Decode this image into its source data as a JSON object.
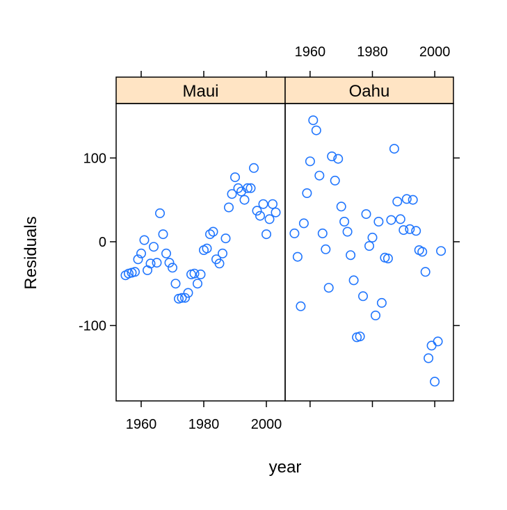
{
  "chart_data": {
    "type": "scatter",
    "xlabel": "year",
    "ylabel": "Residuals",
    "xlim": [
      1952,
      2006
    ],
    "ylim": [
      -190,
      165
    ],
    "x_ticks": [
      1960,
      1980,
      2000
    ],
    "x_tick_labels": [
      "1960",
      "1980",
      "2000"
    ],
    "y_ticks": [
      -100,
      0,
      100
    ],
    "y_tick_labels": [
      "-100",
      "0",
      "100"
    ],
    "grid": false,
    "colors": {
      "points": "#1f75fe",
      "strip": "#ffe4c4",
      "frame": "#000000"
    },
    "panels": [
      {
        "name": "Maui",
        "points": [
          {
            "x": 1955,
            "y": -40
          },
          {
            "x": 1956,
            "y": -38
          },
          {
            "x": 1957,
            "y": -37
          },
          {
            "x": 1958,
            "y": -36
          },
          {
            "x": 1959,
            "y": -21
          },
          {
            "x": 1960,
            "y": -14
          },
          {
            "x": 1961,
            "y": 2
          },
          {
            "x": 1962,
            "y": -34
          },
          {
            "x": 1963,
            "y": -26
          },
          {
            "x": 1964,
            "y": -6
          },
          {
            "x": 1965,
            "y": -25
          },
          {
            "x": 1966,
            "y": 34
          },
          {
            "x": 1967,
            "y": 9
          },
          {
            "x": 1968,
            "y": -14
          },
          {
            "x": 1969,
            "y": -25
          },
          {
            "x": 1970,
            "y": -31
          },
          {
            "x": 1971,
            "y": -50
          },
          {
            "x": 1972,
            "y": -68
          },
          {
            "x": 1973,
            "y": -67
          },
          {
            "x": 1974,
            "y": -67
          },
          {
            "x": 1975,
            "y": -61
          },
          {
            "x": 1976,
            "y": -39
          },
          {
            "x": 1977,
            "y": -38
          },
          {
            "x": 1978,
            "y": -50
          },
          {
            "x": 1979,
            "y": -39
          },
          {
            "x": 1980,
            "y": -10
          },
          {
            "x": 1981,
            "y": -8
          },
          {
            "x": 1982,
            "y": 9
          },
          {
            "x": 1983,
            "y": 12
          },
          {
            "x": 1984,
            "y": -21
          },
          {
            "x": 1985,
            "y": -26
          },
          {
            "x": 1986,
            "y": -14
          },
          {
            "x": 1987,
            "y": 4
          },
          {
            "x": 1988,
            "y": 41
          },
          {
            "x": 1989,
            "y": 57
          },
          {
            "x": 1990,
            "y": 77
          },
          {
            "x": 1991,
            "y": 64
          },
          {
            "x": 1992,
            "y": 60
          },
          {
            "x": 1993,
            "y": 50
          },
          {
            "x": 1994,
            "y": 64
          },
          {
            "x": 1995,
            "y": 64
          },
          {
            "x": 1996,
            "y": 88
          },
          {
            "x": 1997,
            "y": 37
          },
          {
            "x": 1998,
            "y": 31
          },
          {
            "x": 1999,
            "y": 45
          },
          {
            "x": 2000,
            "y": 9
          },
          {
            "x": 2001,
            "y": 27
          },
          {
            "x": 2002,
            "y": 45
          },
          {
            "x": 2003,
            "y": 35
          }
        ]
      },
      {
        "name": "Oahu",
        "points": [
          {
            "x": 1955,
            "y": 10
          },
          {
            "x": 1956,
            "y": -18
          },
          {
            "x": 1957,
            "y": -77
          },
          {
            "x": 1958,
            "y": 22
          },
          {
            "x": 1959,
            "y": 58
          },
          {
            "x": 1960,
            "y": 96
          },
          {
            "x": 1961,
            "y": 145
          },
          {
            "x": 1962,
            "y": 133
          },
          {
            "x": 1963,
            "y": 79
          },
          {
            "x": 1964,
            "y": 10
          },
          {
            "x": 1965,
            "y": -9
          },
          {
            "x": 1966,
            "y": -55
          },
          {
            "x": 1967,
            "y": 102
          },
          {
            "x": 1968,
            "y": 73
          },
          {
            "x": 1969,
            "y": 99
          },
          {
            "x": 1970,
            "y": 42
          },
          {
            "x": 1971,
            "y": 24
          },
          {
            "x": 1972,
            "y": 12
          },
          {
            "x": 1973,
            "y": -16
          },
          {
            "x": 1974,
            "y": -46
          },
          {
            "x": 1975,
            "y": -114
          },
          {
            "x": 1976,
            "y": -113
          },
          {
            "x": 1977,
            "y": -65
          },
          {
            "x": 1978,
            "y": 33
          },
          {
            "x": 1979,
            "y": -5
          },
          {
            "x": 1980,
            "y": 5
          },
          {
            "x": 1981,
            "y": -88
          },
          {
            "x": 1982,
            "y": 24
          },
          {
            "x": 1983,
            "y": -73
          },
          {
            "x": 1984,
            "y": -19
          },
          {
            "x": 1985,
            "y": -20
          },
          {
            "x": 1986,
            "y": 26
          },
          {
            "x": 1987,
            "y": 111
          },
          {
            "x": 1988,
            "y": 48
          },
          {
            "x": 1989,
            "y": 27
          },
          {
            "x": 1990,
            "y": 14
          },
          {
            "x": 1991,
            "y": 51
          },
          {
            "x": 1992,
            "y": 15
          },
          {
            "x": 1993,
            "y": 50
          },
          {
            "x": 1994,
            "y": 13
          },
          {
            "x": 1995,
            "y": -10
          },
          {
            "x": 1996,
            "y": -12
          },
          {
            "x": 1997,
            "y": -36
          },
          {
            "x": 1998,
            "y": -139
          },
          {
            "x": 1999,
            "y": -124
          },
          {
            "x": 2000,
            "y": -167
          },
          {
            "x": 2001,
            "y": -119
          },
          {
            "x": 2002,
            "y": -11
          }
        ]
      }
    ]
  }
}
